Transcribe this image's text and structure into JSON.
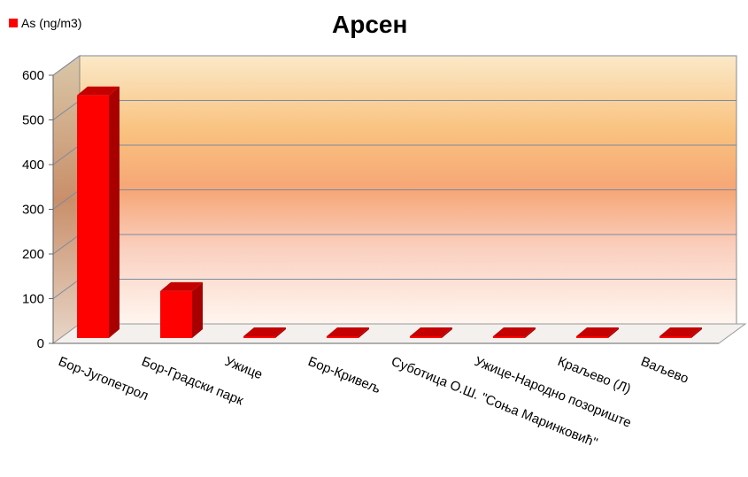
{
  "chart_data": {
    "type": "bar",
    "title": "Арсен",
    "series": [
      {
        "name": "As (ng/m3)",
        "color": "#ff0000",
        "values": [
          555,
          117,
          3,
          12,
          2,
          2,
          3,
          7
        ]
      }
    ],
    "categories": [
      "Бор-Југопетрол",
      "Бор-Градски парк",
      "Ужице",
      "Бор-Кривељ",
      "Суботица О.Ш. \"Соња Маринковић\"",
      "Ужице-Народно позориште",
      "Краљево (Л)",
      "Ваљево"
    ],
    "ylim": [
      0,
      600
    ],
    "yticks": [
      0,
      100,
      200,
      300,
      400,
      500,
      600
    ],
    "legend_position": "top-left",
    "grid": true,
    "style": "3d"
  }
}
